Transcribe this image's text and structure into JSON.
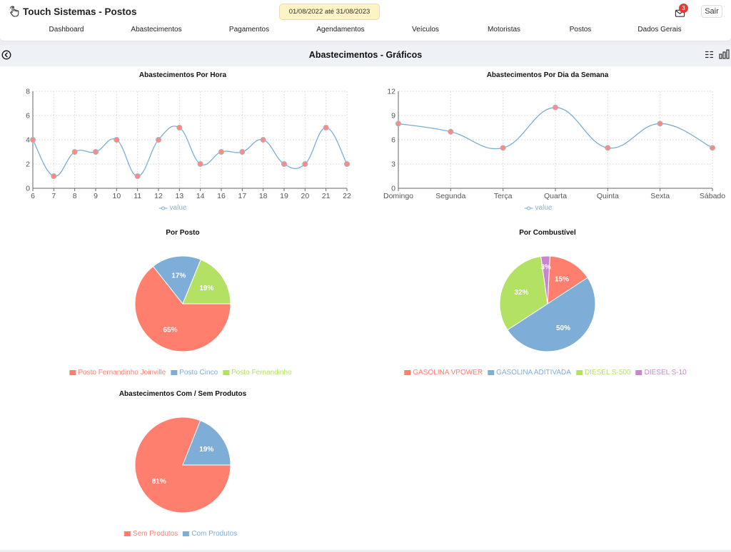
{
  "app": {
    "title": "Touch Sistemas - Postos"
  },
  "header": {
    "period": "01/08/2022 até 31/08/2023",
    "notification_count": "3",
    "logout_label": "Sair"
  },
  "nav": {
    "items": [
      "Dashboard",
      "Abastecimentos",
      "Pagamentos",
      "Agendamentos",
      "Veículos",
      "Motoristas",
      "Postos",
      "Dados Gerais"
    ]
  },
  "page": {
    "title": "Abastecimentos - Gráficos"
  },
  "icons": {
    "brand": "hand-touch-icon",
    "mail": "mail-icon",
    "back": "back-arrow-icon",
    "list": "list-view-icon",
    "chart": "bar-chart-icon"
  },
  "colors": {
    "line": "#7aaed6",
    "point": "#ff8a80",
    "red": "#ff7f6f",
    "blue": "#7eaed8",
    "green": "#b2e163",
    "purple": "#c986cf"
  },
  "chart_data": [
    {
      "type": "line",
      "title": "Abastecimentos Por Hora",
      "x": [
        "6",
        "7",
        "8",
        "9",
        "10",
        "11",
        "12",
        "13",
        "14",
        "16",
        "17",
        "18",
        "19",
        "20",
        "21",
        "22"
      ],
      "series": [
        {
          "name": "value",
          "values": [
            4,
            1,
            3,
            3,
            4,
            1,
            4,
            5,
            2,
            3,
            3,
            4,
            2,
            2,
            5,
            2
          ]
        }
      ],
      "ylim": [
        0,
        8
      ],
      "yticks": [
        0,
        2,
        4,
        6,
        8
      ],
      "grid": true,
      "legend": "bottom"
    },
    {
      "type": "line",
      "title": "Abastecimentos Por Dia da Semana",
      "x": [
        "Domingo",
        "Segunda",
        "Terça",
        "Quarta",
        "Quinta",
        "Sexta",
        "Sábado"
      ],
      "series": [
        {
          "name": "value",
          "values": [
            8,
            7,
            5,
            10,
            5,
            8,
            5
          ]
        }
      ],
      "ylim": [
        0,
        12
      ],
      "yticks": [
        0,
        3,
        6,
        9,
        12
      ],
      "grid": true,
      "legend": "bottom"
    },
    {
      "type": "pie",
      "title": "Por Posto",
      "categories": [
        "Posto Fernandinho Joinville",
        "Posto Cinco",
        "Posto Fernandinho"
      ],
      "values": [
        65,
        17,
        19
      ],
      "labels": [
        "65%",
        "17%",
        "19%"
      ],
      "colors": [
        "#ff7f6f",
        "#7eaed8",
        "#b2e163"
      ],
      "legend": "bottom"
    },
    {
      "type": "pie",
      "title": "Por Combustível",
      "categories": [
        "GASOLINA VPOWER",
        "GASOLINA ADITIVADA",
        "DIESEL S-500",
        "DIESEL S-10"
      ],
      "values": [
        15,
        50,
        32,
        3
      ],
      "labels": [
        "15%",
        "50%",
        "32%",
        "3%"
      ],
      "colors": [
        "#ff7f6f",
        "#7eaed8",
        "#b2e163",
        "#c986cf"
      ],
      "legend": "bottom"
    },
    {
      "type": "pie",
      "title": "Abastecimentos Com / Sem Produtos",
      "categories": [
        "Sem Produtos",
        "Com Produtos"
      ],
      "values": [
        81,
        19
      ],
      "labels": [
        "81%",
        "19%"
      ],
      "colors": [
        "#ff7f6f",
        "#7eaed8"
      ],
      "legend": "bottom"
    }
  ]
}
